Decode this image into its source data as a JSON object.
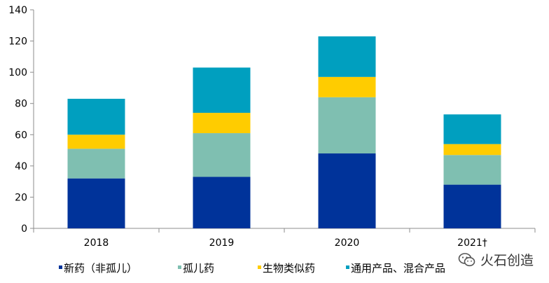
{
  "chart_data": {
    "type": "bar",
    "stacked": true,
    "categories": [
      "2018",
      "2019",
      "2020",
      "2021†"
    ],
    "series": [
      {
        "name": "新药（非孤儿）",
        "color": "#00339A",
        "values": [
          32,
          33,
          48,
          28
        ]
      },
      {
        "name": "孤儿药",
        "color": "#7FBFB1",
        "values": [
          19,
          28,
          36,
          19
        ]
      },
      {
        "name": "生物类似药",
        "color": "#FFCC00",
        "values": [
          9,
          13,
          13,
          7
        ]
      },
      {
        "name": "通用产品、混合产品",
        "color": "#009FBF",
        "values": [
          23,
          29,
          26,
          19
        ]
      }
    ],
    "ylim": [
      0,
      140
    ],
    "yticks": [
      0,
      20,
      40,
      60,
      80,
      100,
      120,
      140
    ],
    "grid": false,
    "legend": "bottom"
  },
  "watermark": {
    "icon": "wechat-icon",
    "text": "火石创造"
  }
}
